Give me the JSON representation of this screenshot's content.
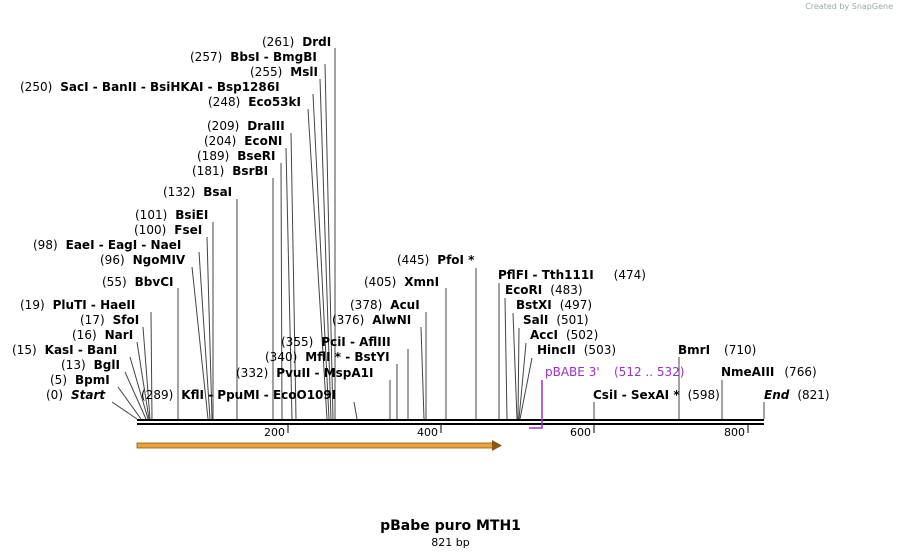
{
  "watermark": "Created by SnapGene",
  "sequence_length": 821,
  "sites": [
    {
      "pos": "(261)",
      "name": "DrdI"
    },
    {
      "pos": "(257)",
      "name": "BbsI  -  BmgBI"
    },
    {
      "pos": "(255)",
      "name": "MslI"
    },
    {
      "pos": "(250)",
      "name": "SacI  -  BanII  -  BsiHKAI  -  Bsp1286I"
    },
    {
      "pos": "(248)",
      "name": "Eco53kI"
    },
    {
      "pos": "(209)",
      "name": "DraIII"
    },
    {
      "pos": "(204)",
      "name": "EcoNI"
    },
    {
      "pos": "(189)",
      "name": "BseRI"
    },
    {
      "pos": "(181)",
      "name": "BsrBI"
    },
    {
      "pos": "(132)",
      "name": "BsaI"
    },
    {
      "pos": "(101)",
      "name": "BsiEI"
    },
    {
      "pos": "(100)",
      "name": "FseI"
    },
    {
      "pos": "(98)",
      "name": "EaeI  -  EagI  -  NaeI"
    },
    {
      "pos": "(96)",
      "name": "NgoMIV"
    },
    {
      "pos": "(55)",
      "name": "BbvCI"
    },
    {
      "pos": "(19)",
      "name": "PluTI  -  HaeII"
    },
    {
      "pos": "(17)",
      "name": "SfoI"
    },
    {
      "pos": "(16)",
      "name": "NarI"
    },
    {
      "pos": "(15)",
      "name": "KasI  -  BanI"
    },
    {
      "pos": "(13)",
      "name": "BglI"
    },
    {
      "pos": "(5)",
      "name": "BpmI"
    },
    {
      "pos": "(0)",
      "name": "Start"
    },
    {
      "pos": "(289)",
      "name": "KflI  -  PpuMI  -  EcoO109I"
    },
    {
      "pos": "(332)",
      "name": "PvuII  -  MspA1I"
    },
    {
      "pos": "(340)",
      "name": "MflI *  -  BstYI"
    },
    {
      "pos": "(355)",
      "name": "PciI  -  AflIII"
    },
    {
      "pos": "(376)",
      "name": "AlwNI"
    },
    {
      "pos": "(378)",
      "name": "AcuI"
    },
    {
      "pos": "(405)",
      "name": "XmnI"
    },
    {
      "pos": "(445)",
      "name": "PfoI *"
    },
    {
      "pos": "(474)",
      "name": "PflFI  -  Tth111I"
    },
    {
      "pos": "(483)",
      "name": "EcoRI"
    },
    {
      "pos": "(497)",
      "name": "BstXI"
    },
    {
      "pos": "(501)",
      "name": "SalI"
    },
    {
      "pos": "(502)",
      "name": "AccI"
    },
    {
      "pos": "(503)",
      "name": "HincII"
    },
    {
      "pos": "(598)",
      "name": "CsiI  -  SexAI *"
    },
    {
      "pos": "(710)",
      "name": "BmrI"
    },
    {
      "pos": "(766)",
      "name": "NmeAIII"
    },
    {
      "pos": "(821)",
      "name": "End"
    }
  ],
  "feature": {
    "name": "pBABE 3'",
    "range": "(512 .. 532)"
  },
  "ticks": [
    "200",
    "400",
    "600",
    "800"
  ],
  "title": "pBabe puro MTH1",
  "subtitle": "821 bp",
  "colors": {
    "feature": "#9b30c8",
    "orf_fill": "#e8a33a",
    "orf_stroke": "#8a5a10"
  }
}
